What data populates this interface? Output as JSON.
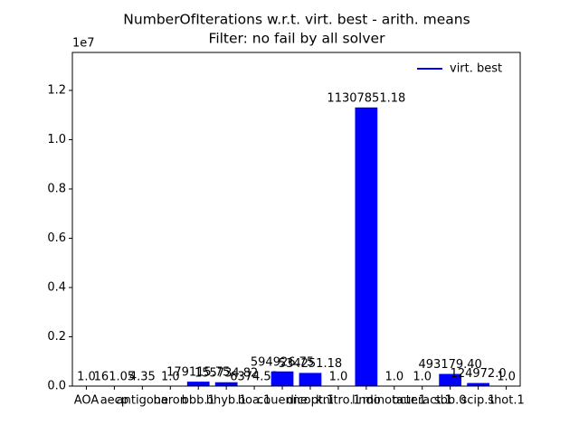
{
  "chart_data": {
    "type": "bar",
    "title": "NumberOfIterations w.r.t. virt. best - arith. means",
    "subtitle": "Filter: no fail by all solver",
    "categories": [
      "AOA",
      "aecp",
      "antigone",
      "baron",
      "bbb.1",
      "bhyb.1",
      "boa.1",
      "couenne",
      "dicopt.1",
      "knitro.1",
      "lindo",
      "minotaur.1",
      "octeract.1",
      "sbb.0",
      "scip.1",
      "shot.1"
    ],
    "series": [
      {
        "name": "virt. best",
        "color": "#0000ff",
        "values": [
          1,
          161.05,
          4.35,
          1,
          179115.75,
          155734.82,
          6374.53,
          594926.75,
          534251.18,
          1,
          11307851.18,
          1,
          1,
          493179.4,
          124972,
          1
        ],
        "value_labels": [
          "1.0",
          "161.05",
          "4.35",
          "1.0",
          "179115.75",
          "155734.82",
          "6374.53",
          "594926.75",
          "534251.18",
          "1.0",
          "11307851.18",
          "1.0",
          "1.0",
          "493179.40",
          "124972.0",
          "1.0"
        ]
      }
    ],
    "ylim": [
      0,
      13540000
    ],
    "yticks": [
      {
        "value": 0,
        "label": "0.0"
      },
      {
        "value": 2000000,
        "label": "0.2"
      },
      {
        "value": 4000000,
        "label": "0.4"
      },
      {
        "value": 6000000,
        "label": "0.6"
      },
      {
        "value": 8000000,
        "label": "0.8"
      },
      {
        "value": 10000000,
        "label": "1.0"
      },
      {
        "value": 12000000,
        "label": "1.2"
      }
    ],
    "y_offset_label": "1e7",
    "legend": "upper right",
    "grid": false
  }
}
